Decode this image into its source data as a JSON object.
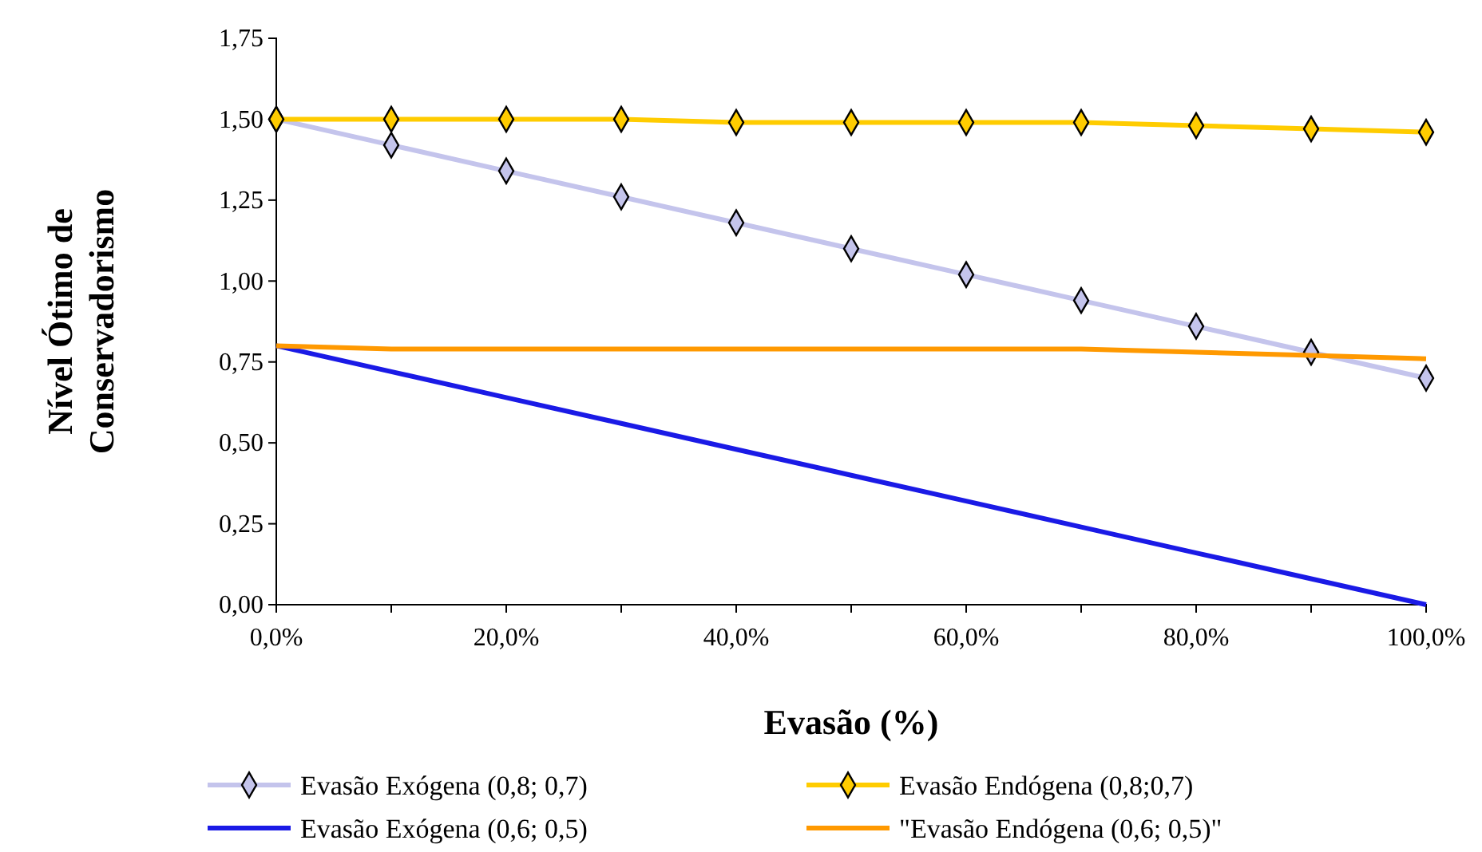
{
  "chart_data": {
    "type": "line",
    "xlabel": "Evasão (%)",
    "ylabel": "Nível Ótimo de\nConservadorismo",
    "x": [
      0,
      10,
      20,
      30,
      40,
      50,
      60,
      70,
      80,
      90,
      100
    ],
    "xlim": [
      0,
      100
    ],
    "xticks": [
      {
        "value": 0,
        "label": "0,0%"
      },
      {
        "value": 10,
        "label": null
      },
      {
        "value": 20,
        "label": "20,0%"
      },
      {
        "value": 30,
        "label": null
      },
      {
        "value": 40,
        "label": "40,0%"
      },
      {
        "value": 50,
        "label": null
      },
      {
        "value": 60,
        "label": "60,0%"
      },
      {
        "value": 70,
        "label": null
      },
      {
        "value": 80,
        "label": "80,0%"
      },
      {
        "value": 90,
        "label": null
      },
      {
        "value": 100,
        "label": "100,0%"
      }
    ],
    "ylim": [
      0,
      1.75
    ],
    "yticks": [
      {
        "value": 0,
        "label": "0,00"
      },
      {
        "value": 0.25,
        "label": "0,25"
      },
      {
        "value": 0.5,
        "label": "0,50"
      },
      {
        "value": 0.75,
        "label": "0,75"
      },
      {
        "value": 1,
        "label": "1,00"
      },
      {
        "value": 1.25,
        "label": "1,25"
      },
      {
        "value": 1.5,
        "label": "1,50"
      },
      {
        "value": 1.75,
        "label": "1,75"
      }
    ],
    "grid": false,
    "legend": "bottom",
    "series": [
      {
        "name": "Evasão Exógena (0,8; 0,7)",
        "color": "#c4c4ec",
        "marker": "diamond",
        "values": [
          1.5,
          1.42,
          1.34,
          1.26,
          1.18,
          1.1,
          1.02,
          0.94,
          0.86,
          0.78,
          0.7
        ]
      },
      {
        "name": "Evasão Endógena (0,8;0,7)",
        "color": "#ffcc00",
        "marker": "diamond",
        "values": [
          1.5,
          1.5,
          1.5,
          1.5,
          1.49,
          1.49,
          1.49,
          1.49,
          1.48,
          1.47,
          1.46
        ]
      },
      {
        "name": "Evasão Exógena (0,6; 0,5)",
        "color": "#1a1ae6",
        "marker": "none",
        "values": [
          0.8,
          0.72,
          0.64,
          0.56,
          0.48,
          0.4,
          0.32,
          0.24,
          0.16,
          0.08,
          0
        ]
      },
      {
        "name": "\"Evasão Endógena (0,6; 0,5)\"",
        "color": "#ff9900",
        "marker": "none",
        "values": [
          0.8,
          0.79,
          0.79,
          0.79,
          0.79,
          0.79,
          0.79,
          0.79,
          0.78,
          0.77,
          0.76
        ]
      }
    ]
  }
}
